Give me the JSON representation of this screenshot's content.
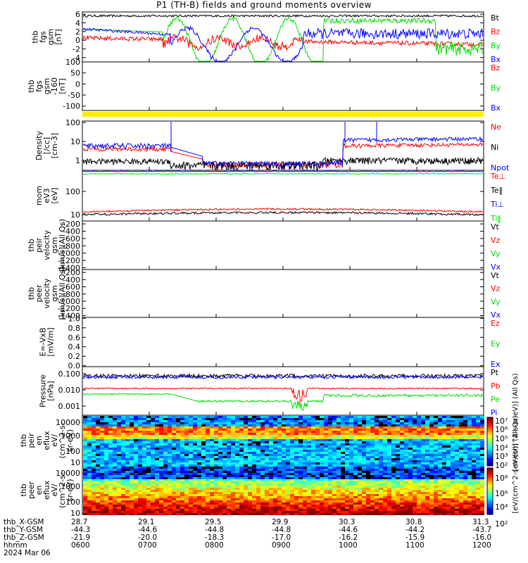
{
  "title": "P1 (TH-B) fields and ground moments overview",
  "colors": {
    "black": "#000000",
    "red": "#ff0000",
    "green": "#00dd00",
    "blue": "#0000ff",
    "yellow": "#ffee00"
  },
  "chart_data": [
    {
      "type": "line",
      "panel": "fgs",
      "ylabel": [
        "thb",
        "fgs",
        "gsm",
        "[nT]"
      ],
      "yticks": [
        "6",
        "4",
        "2",
        "0",
        "-2",
        "-4"
      ],
      "ylim": [
        -5,
        6.5
      ],
      "legend": [
        {
          "name": "Bt",
          "color": "black"
        },
        {
          "name": "Bz",
          "color": "red"
        },
        {
          "name": "By",
          "color": "green"
        },
        {
          "name": "Bx",
          "color": "blue"
        }
      ]
    },
    {
      "type": "line",
      "panel": "fgs_ulo",
      "ylabel": [
        "thb",
        "fgs",
        "gsm",
        "-160",
        "[nT]"
      ],
      "yticks": [
        "100",
        "50",
        "0",
        "-50",
        "-100"
      ],
      "ylim": [
        -120,
        100
      ],
      "legend": [
        {
          "name": "Bz",
          "color": "red"
        },
        {
          "name": "By",
          "color": "green"
        },
        {
          "name": "Bx",
          "color": "blue"
        }
      ]
    },
    {
      "type": "line",
      "panel": "density",
      "ylabel": [
        "Density",
        "[/cc]",
        "[cm-3]"
      ],
      "yticks": [
        "100",
        "10",
        "1"
      ],
      "yscale": "log",
      "ylim": [
        0.3,
        120
      ],
      "legend": [
        {
          "name": "Ne",
          "color": "red"
        },
        {
          "name": "Ni",
          "color": "black"
        },
        {
          "name": "Npot",
          "color": "blue"
        }
      ]
    },
    {
      "type": "line",
      "panel": "temperature",
      "ylabel": [
        "mom",
        "eV3",
        "[eV]"
      ],
      "yticks": [
        "100",
        "10"
      ],
      "yscale": "log",
      "legend": [
        {
          "name": "Te⊥",
          "color": "red"
        },
        {
          "name": "Te‖",
          "color": "black"
        },
        {
          "name": "Ti⊥",
          "color": "blue"
        },
        {
          "name": "Ti‖",
          "color": "green"
        }
      ]
    },
    {
      "type": "line",
      "panel": "peir_velocity",
      "ylabel": [
        "thb",
        "peir",
        "velocity",
        "gsm",
        "[km/s](All Qs)"
      ],
      "yticks": [
        "-200",
        "-400",
        "-600",
        "-800",
        "-1000",
        "-1200",
        "-1400"
      ],
      "ylim": [
        -1450,
        -120
      ],
      "legend": [
        {
          "name": "Vt",
          "color": "black"
        },
        {
          "name": "Vz",
          "color": "red"
        },
        {
          "name": "Vy",
          "color": "green"
        },
        {
          "name": "Vx",
          "color": "blue"
        }
      ]
    },
    {
      "type": "line",
      "panel": "peer_velocity",
      "ylabel": [
        "thb",
        "peer",
        "velocity",
        "gsm",
        "[km/s](All Qs)"
      ],
      "yticks": [
        "-200",
        "-400",
        "-600",
        "-800",
        "-1000",
        "-1200",
        "-1400"
      ],
      "ylim": [
        -1450,
        -120
      ],
      "legend": [
        {
          "name": "Vt",
          "color": "black"
        },
        {
          "name": "Vz",
          "color": "red"
        },
        {
          "name": "Vy",
          "color": "green"
        },
        {
          "name": "Vx",
          "color": "blue"
        }
      ]
    },
    {
      "type": "line",
      "panel": "efield",
      "ylabel": [
        "E=-VxB",
        "[mV/m]"
      ],
      "yticks": [
        "1.0",
        "0.8",
        "0.6",
        "0.4",
        "0.2",
        "0.0"
      ],
      "ylim": [
        0,
        1
      ],
      "legend": [
        {
          "name": "Ez",
          "color": "red"
        },
        {
          "name": "Ey",
          "color": "green"
        },
        {
          "name": "Ex",
          "color": "blue"
        }
      ]
    },
    {
      "type": "line",
      "panel": "pressure",
      "ylabel": [
        "Pressure",
        "[nPa]"
      ],
      "yticks": [
        "0.100",
        "0.010",
        "0.001"
      ],
      "yscale": "log",
      "legend": [
        {
          "name": "Pt",
          "color": "black"
        },
        {
          "name": "Pb",
          "color": "red"
        },
        {
          "name": "Pe",
          "color": "green"
        },
        {
          "name": "Pi",
          "color": "blue"
        }
      ]
    },
    {
      "type": "heatmap",
      "panel": "peir_en_eflux",
      "ylabel": [
        "thb",
        "peir",
        "en",
        "eflux",
        "eV/",
        "(cm^2-s-",
        "sr-eV)"
      ],
      "yticks": [
        "10000",
        "1000",
        "100",
        "10"
      ],
      "yscale": "log"
    },
    {
      "type": "heatmap",
      "panel": "peer_en_eflux",
      "ylabel": [
        "thb",
        "peer",
        "en",
        "eflux",
        "eV/",
        "(cm^2-s-",
        "sr-eV)"
      ],
      "yticks": [
        "10000",
        "1000",
        "100",
        "10"
      ],
      "yscale": "log"
    }
  ],
  "colorbar_top": {
    "ticks": [
      "10⁷",
      "10⁶",
      "10⁵",
      "10⁴",
      "10³",
      "10²"
    ],
    "label": "[eV/(cm^2-s-sr-eV)] (All Qs)"
  },
  "colorbar_bottom": {
    "ticks": [
      "10⁸",
      "10⁶",
      "10⁴",
      "10²"
    ],
    "label": "[eV/(cm^2-s-sr-eV)] (All Qs)"
  },
  "ephemeris": {
    "labels": [
      "thb_X-GSM",
      "thb_Y-GSM",
      "thb_Z-GSM",
      "hhmm",
      "2024 Mar 06"
    ],
    "columns": [
      {
        "x": "28.7",
        "y": "-44.3",
        "z": "-21.9",
        "hhmm": "0600"
      },
      {
        "x": "29.1",
        "y": "-44.6",
        "z": "-20.0",
        "hhmm": "0700"
      },
      {
        "x": "29.5",
        "y": "-44.8",
        "z": "-18.3",
        "hhmm": "0800"
      },
      {
        "x": "29.9",
        "y": "-44.8",
        "z": "-17.0",
        "hhmm": "0900"
      },
      {
        "x": "30.3",
        "y": "-44.6",
        "z": "-16.2",
        "hhmm": "1000"
      },
      {
        "x": "30.8",
        "y": "-44.2",
        "z": "-15.9",
        "hhmm": "1100"
      },
      {
        "x": "31.3",
        "y": "-43.7",
        "z": "-16.0",
        "hhmm": "1200"
      }
    ]
  }
}
